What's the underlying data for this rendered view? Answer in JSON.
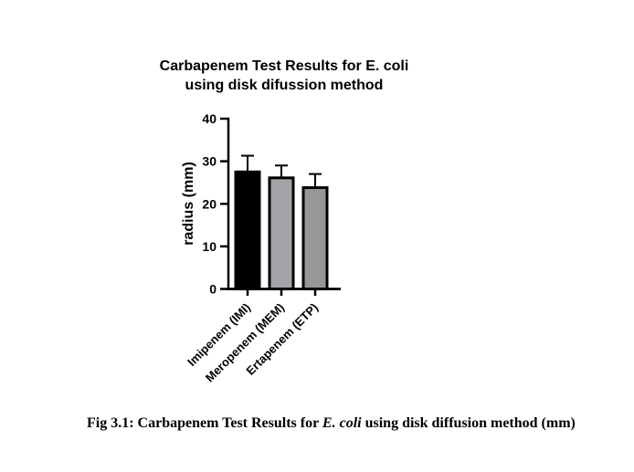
{
  "figure": {
    "title_line1": "Carbapenem Test Results for E. coli",
    "title_line2": "using disk difussion method",
    "caption": {
      "prefix": "Fig 3.1: Carbapenem Test Results for ",
      "italic": "E. coli",
      "suffix": " using disk diffusion method (mm)"
    }
  },
  "chart_data": {
    "type": "bar",
    "title": "Carbapenem Test Results for E. coli using disk difussion method",
    "categories": [
      "Imipenem (IMI)",
      "Meropenem (MEM)",
      "Ertapenem (ETP)"
    ],
    "values": [
      27.5,
      26.1,
      23.8
    ],
    "errors": [
      3.8,
      2.9,
      3.2
    ],
    "error_bar_style": "upper-cap",
    "bar_colors": [
      "#000000",
      "#a4a4a8",
      "#979797"
    ],
    "bar_border_color": "#000000",
    "axis_color": "#000000",
    "xlabel": "",
    "ylabel": "radius (mm)",
    "ylim": [
      0,
      40
    ],
    "yticks": [
      0,
      10,
      20,
      30,
      40
    ],
    "grid": false,
    "legend": "none",
    "x_label_rotation_deg": 45
  }
}
